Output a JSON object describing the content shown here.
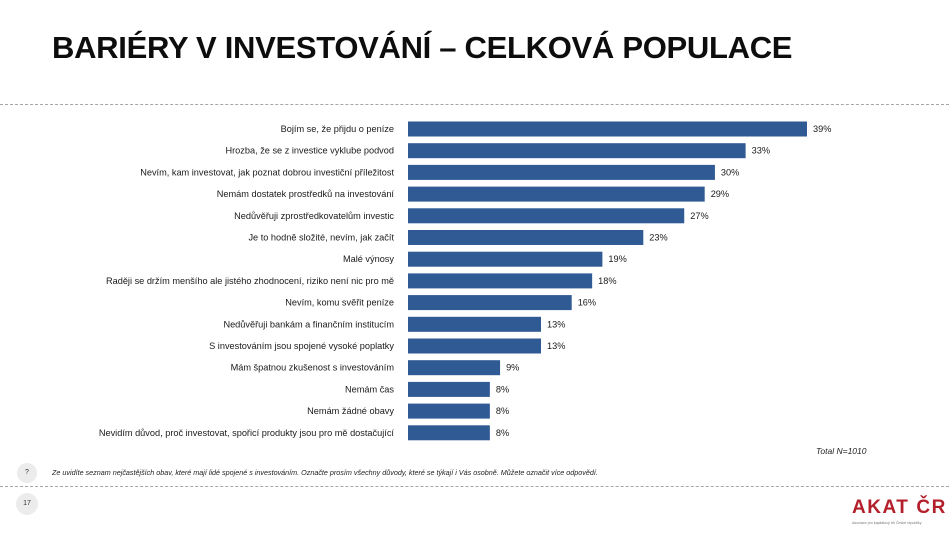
{
  "slide": {
    "title": "BARIÉRY V INVESTOVÁNÍ – CELKOVÁ POPULACE",
    "total_note": "Total N=1010",
    "question_marker": "?",
    "question": "Ze uvidíte seznam nejčastějších obav, které mají lidé spojené s investováním. Označte prosím všechny důvody, které se týkají i Vás osobně.  Můžete označit více odpovědí.",
    "page_number": "17",
    "logo_text_left": "AKAT",
    "logo_text_right": "ČR",
    "logo_subtitle": "Asociace pro kapitálový trh České republiky"
  },
  "chart_data": {
    "type": "bar",
    "orientation": "horizontal",
    "categories": [
      "Bojím se, že přijdu o peníze",
      "Hrozba, že se z investice vyklube podvod",
      "Nevím, kam investovat, jak poznat dobrou investiční příležitost",
      "Nemám dostatek prostředků na investování",
      "Nedůvěřuji zprostředkovatelům investic",
      "Je to hodně složité, nevím, jak začít",
      "Malé výnosy",
      "Raději se držím menšího ale jistého zhodnocení, riziko není nic pro mě",
      "Nevím, komu svěřit peníze",
      "Nedůvěřuji bankám a finančním institucím",
      "S investováním jsou spojené vysoké poplatky",
      "Mám špatnou zkušenost s  investováním",
      "Nemám čas",
      "Nemám žádné obavy",
      "Nevidím důvod, proč investovat, spořicí produkty jsou pro mě dostačující"
    ],
    "values": [
      39,
      33,
      30,
      29,
      27,
      23,
      19,
      18,
      16,
      13,
      13,
      9,
      8,
      8,
      8
    ],
    "value_labels": [
      "39%",
      "33%",
      "30%",
      "29%",
      "27%",
      "23%",
      "19%",
      "18%",
      "16%",
      "13%",
      "13%",
      "9%",
      "8%",
      "8%",
      "8%"
    ],
    "unit": "%",
    "xlim": [
      0,
      39
    ],
    "bar_color": "#2f5a93",
    "grid": false,
    "legend": "none"
  }
}
